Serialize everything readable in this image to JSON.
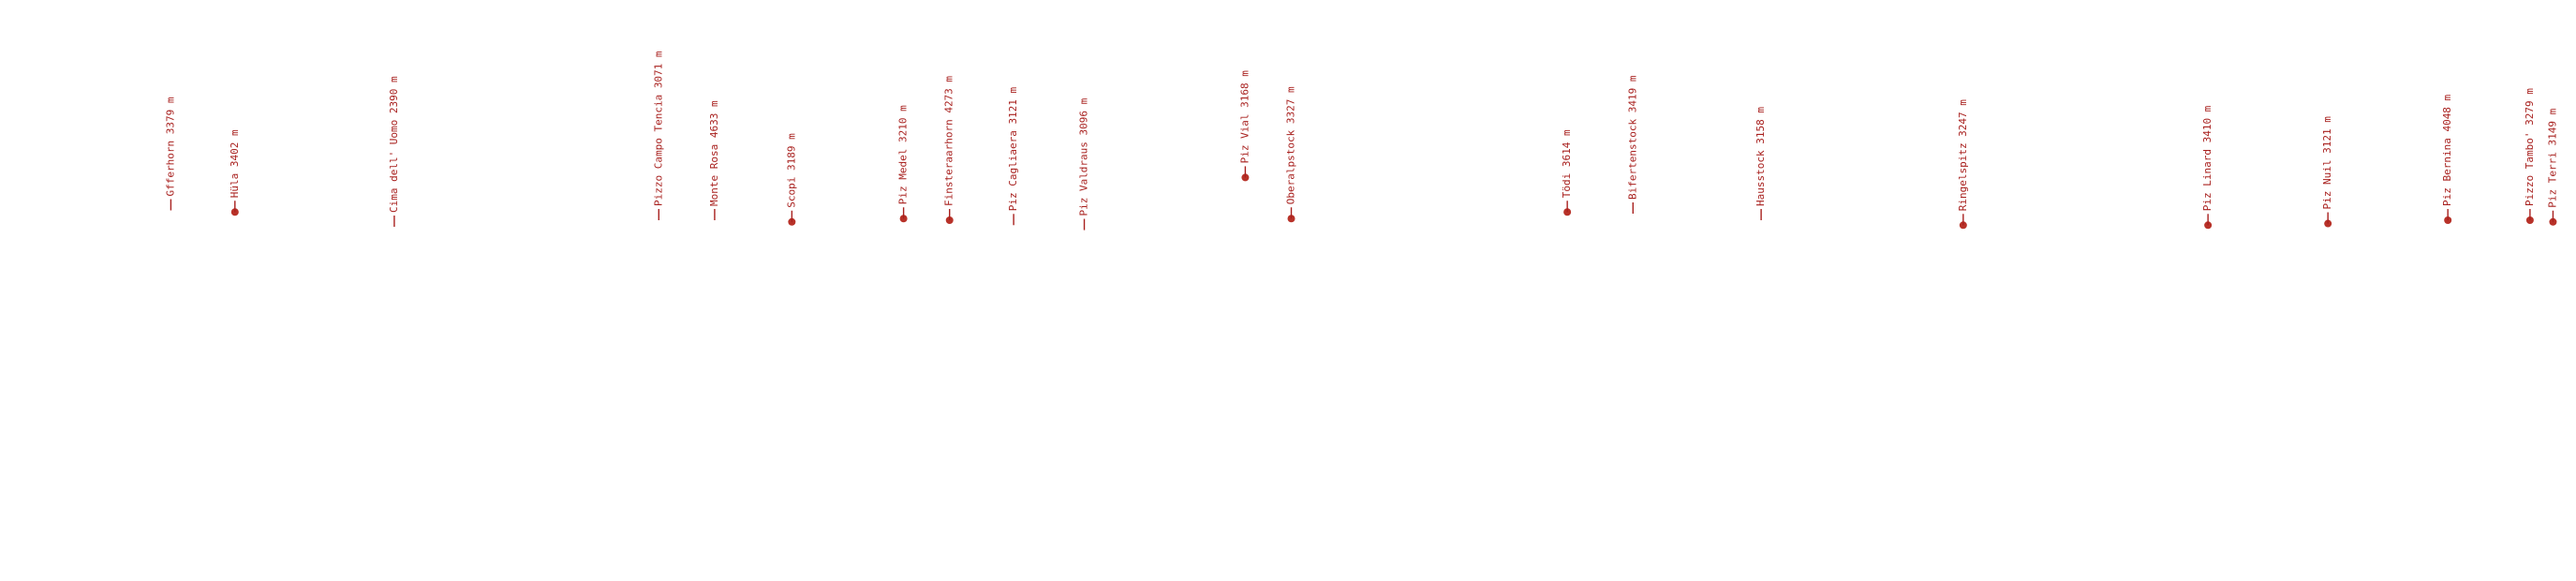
{
  "peaks": [
    {
      "label": "Gfferhorn 3379 m"
    },
    {
      "label": "Hüla 3402 m"
    },
    {
      "label": "Cima dell' Uomo 2390 m"
    },
    {
      "label": "Pizzo Campo Tencia 3071 m"
    },
    {
      "label": "Monte Rosa 4633 m"
    },
    {
      "label": "Scopi 3189 m"
    },
    {
      "label": "Piz Medel 3210 m"
    },
    {
      "label": "Finsteraarhorn 4273 m"
    },
    {
      "label": "Piz Cagliaera 3121 m"
    },
    {
      "label": "Piz Valdraus 3096 m"
    },
    {
      "label": "Piz Vial 3168 m"
    },
    {
      "label": "Oberalpstock 3327 m"
    },
    {
      "label": "Tödi 3614 m"
    },
    {
      "label": "Bifertenstock 3419 m"
    },
    {
      "label": "Hausstock 3158 m"
    },
    {
      "label": "Ringelspitz 3247 m"
    },
    {
      "label": "Piz Linard 3410 m"
    },
    {
      "label": "Piz Nuil 3121 m"
    },
    {
      "label": "Piz Bernina 4048 m"
    },
    {
      "label": "Pizzo Tambo' 3279 m"
    },
    {
      "label": "Piz Terri 3149 m"
    }
  ]
}
